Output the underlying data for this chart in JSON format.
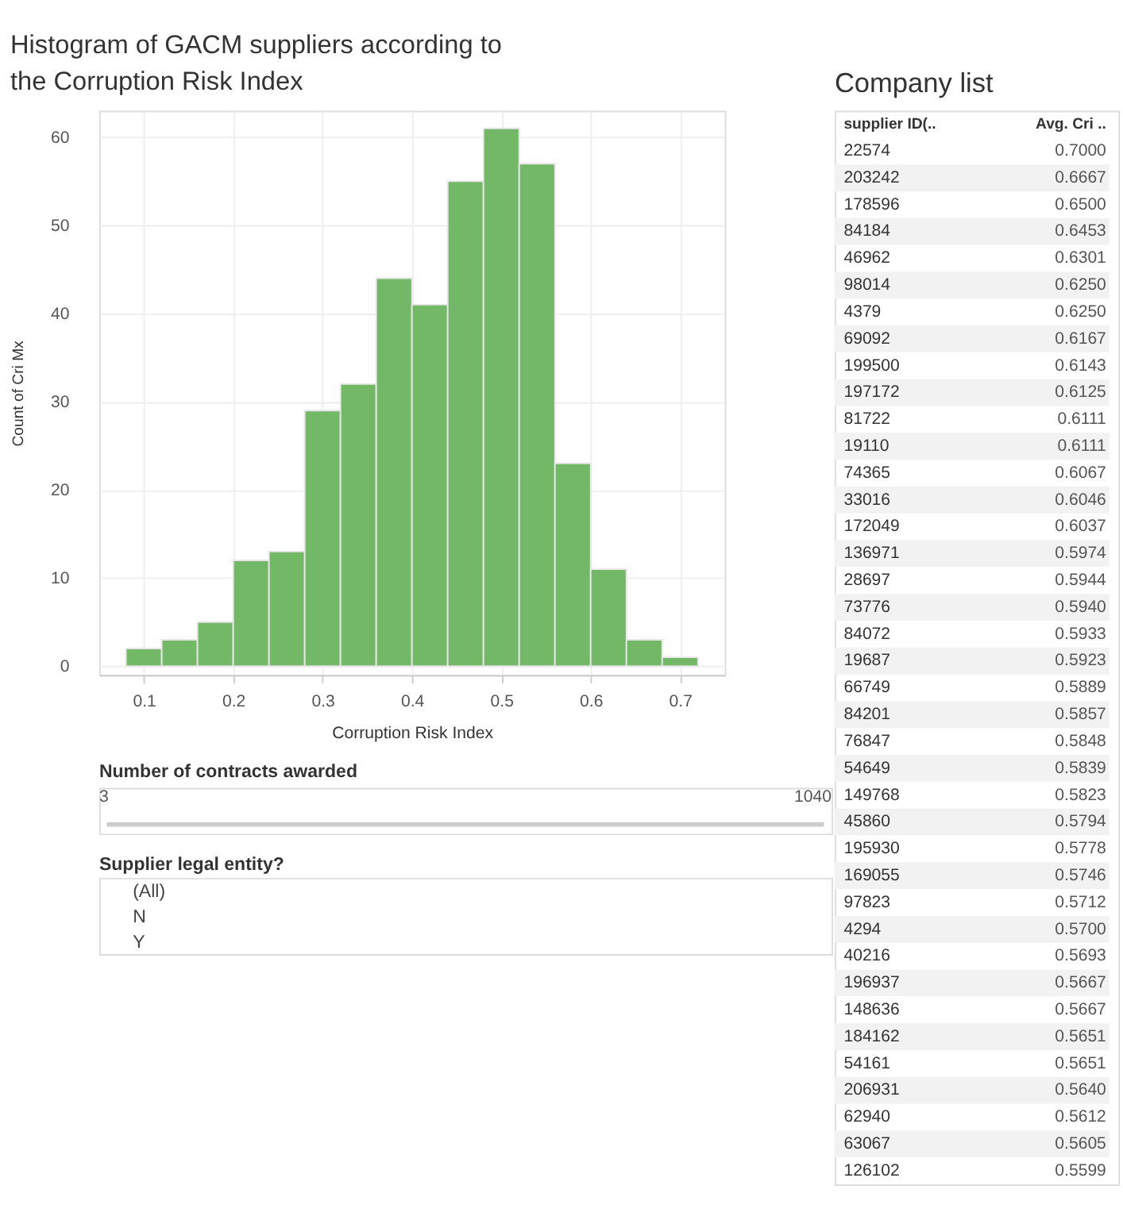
{
  "chart_data": [
    {
      "type": "histogram",
      "title": [
        "Histogram of GACM suppliers according to",
        "the Corruption Risk Index"
      ],
      "xlabel": "Corruption Risk Index",
      "ylabel": "Count of Cri Mx",
      "color": "#72b866",
      "bins": [
        0.08,
        0.12,
        0.16,
        0.2,
        0.24,
        0.28,
        0.32,
        0.36,
        0.4,
        0.44,
        0.48,
        0.52,
        0.56,
        0.6,
        0.64,
        0.68,
        0.72
      ],
      "values": [
        2,
        3,
        5,
        12,
        13,
        29,
        32,
        44,
        41,
        55,
        61,
        57,
        23,
        11,
        3,
        1
      ],
      "xlim": [
        0.05,
        0.75
      ],
      "xticks": [
        0.1,
        0.2,
        0.3,
        0.4,
        0.5,
        0.6,
        0.7
      ],
      "ylim": [
        -1,
        63
      ],
      "yticks": [
        0,
        10,
        20,
        30,
        40,
        50,
        60
      ],
      "grid": true
    },
    {
      "type": "other",
      "title": "Number of contracts awarded",
      "annotations": [
        "3",
        "1040"
      ]
    },
    {
      "type": "other",
      "title": "Supplier legal entity?",
      "categories": [
        "(All)",
        "N",
        "Y"
      ]
    },
    {
      "type": "other",
      "title": "Company list",
      "annotations": [
        "supplier ID(..",
        "Avg. Cri .."
      ],
      "categories": [
        "22574",
        "203242",
        "178596",
        "84184",
        "46962",
        "98014",
        "4379",
        "69092",
        "199500",
        "197172",
        "81722",
        "19110",
        "74365",
        "33016",
        "172049",
        "136971",
        "28697",
        "73776",
        "84072",
        "19687",
        "66749",
        "84201",
        "76847",
        "54649",
        "149768",
        "45860",
        "195930",
        "169055",
        "97823",
        "4294",
        "40216",
        "196937",
        "148636",
        "184162",
        "54161",
        "206931",
        "62940",
        "63067",
        "126102"
      ],
      "value_labels": [
        "0.7000",
        "0.6667",
        "0.6500",
        "0.6453",
        "0.6301",
        "0.6250",
        "0.6250",
        "0.6167",
        "0.6143",
        "0.6125",
        "0.6111",
        "0.6111",
        "0.6067",
        "0.6046",
        "0.6037",
        "0.5974",
        "0.5944",
        "0.5940",
        "0.5933",
        "0.5923",
        "0.5889",
        "0.5857",
        "0.5848",
        "0.5839",
        "0.5823",
        "0.5794",
        "0.5778",
        "0.5746",
        "0.5712",
        "0.5700",
        "0.5693",
        "0.5667",
        "0.5667",
        "0.5651",
        "0.5651",
        "0.5640",
        "0.5612",
        "0.5605",
        "0.5599"
      ]
    }
  ]
}
